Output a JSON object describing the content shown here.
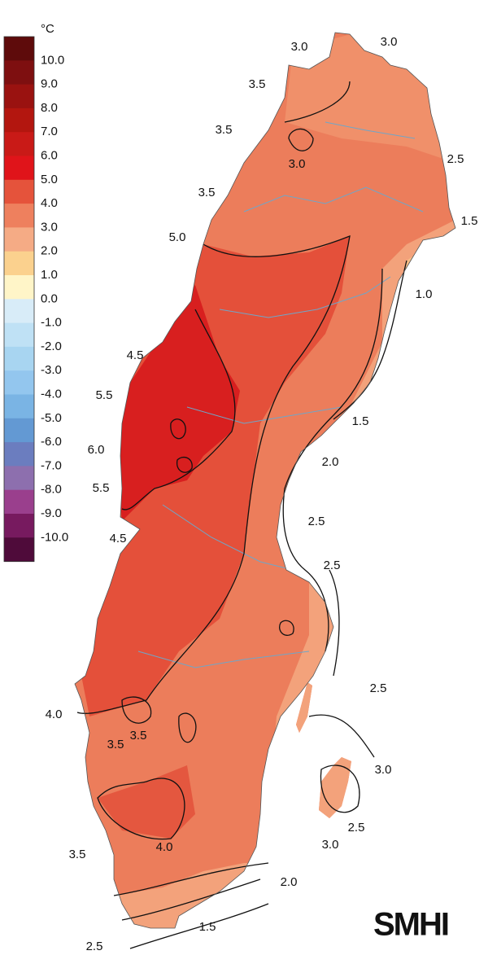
{
  "legend": {
    "unit": "°C",
    "labels": [
      "10.0",
      "9.0",
      "8.0",
      "7.0",
      "6.0",
      "5.0",
      "4.0",
      "3.0",
      "2.0",
      "1.0",
      "0.0",
      "-1.0",
      "-2.0",
      "-3.0",
      "-4.0",
      "-5.0",
      "-6.0",
      "-7.0",
      "-8.0",
      "-9.0",
      "-10.0"
    ],
    "colors": [
      "#5e0b0b",
      "#7e0f10",
      "#9a1210",
      "#b3160f",
      "#c91a17",
      "#e0141a",
      "#e5533b",
      "#ee805e",
      "#f5ab85",
      "#fbd18e",
      "#fff5c8",
      "#d8ecf8",
      "#bfe1f5",
      "#a8d5f1",
      "#93c6ee",
      "#7ab4e4",
      "#6399d3",
      "#6b7dbf",
      "#8d6fae",
      "#9a3f8d",
      "#771a5f",
      "#4f0b3a"
    ]
  },
  "contour_labels": [
    "3.0",
    "3.0",
    "3.5",
    "3.5",
    "3.0",
    "2.5",
    "3.5",
    "1.5",
    "5.0",
    "1.0",
    "4.5",
    "5.5",
    "1.5",
    "6.0",
    "2.0",
    "5.5",
    "2.5",
    "4.5",
    "2.5",
    "2.5",
    "4.0",
    "3.5",
    "3.5",
    "3.0",
    "2.5",
    "4.0",
    "3.0",
    "3.5",
    "2.0",
    "1.5",
    "2.5"
  ],
  "logo": "SMHI"
}
